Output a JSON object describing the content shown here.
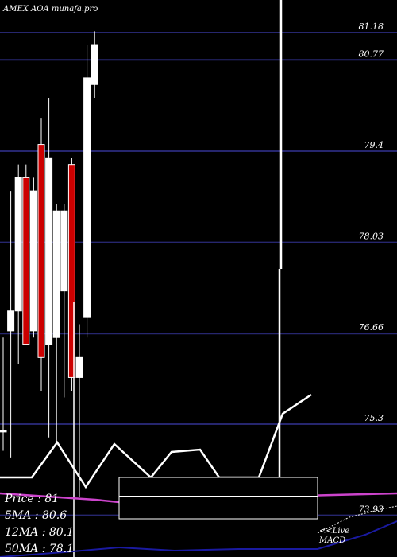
{
  "chart_data": {
    "type": "candlestick",
    "title": "AMEX  AOA munafa.pro",
    "price_ticks": [
      81.18,
      80.77,
      79.4,
      78.03,
      76.66,
      75.3,
      73.93
    ],
    "price_tick_labels": [
      "81.18",
      "80.77",
      "79.4",
      "78.03",
      "76.66",
      "75.3",
      "73.93"
    ],
    "ylim": [
      73.5,
      81.8
    ],
    "grid": true,
    "colors": {
      "background": "#000000",
      "grid": "#26266e",
      "bull": "#ffffff",
      "bear": "#cc0000",
      "candle_outline": "#ffffff",
      "ma_line": "#cc44cc",
      "volume_box": "#000000",
      "macd_line": "#1a1aa0",
      "text": "#ffffff"
    },
    "candles": [
      {
        "open": 75.2,
        "high": 76.6,
        "low": 74.9,
        "close": 75.2
      },
      {
        "open": 76.7,
        "high": 78.8,
        "low": 74.8,
        "close": 77.0
      },
      {
        "open": 77.0,
        "high": 79.2,
        "low": 76.2,
        "close": 79.0
      },
      {
        "open": 79.0,
        "high": 79.2,
        "low": 76.5,
        "close": 76.5
      },
      {
        "open": 76.7,
        "high": 79.0,
        "low": 76.6,
        "close": 78.8
      },
      {
        "open": 79.5,
        "high": 79.9,
        "low": 75.8,
        "close": 76.3
      },
      {
        "open": 76.5,
        "high": 80.2,
        "low": 75.1,
        "close": 79.3
      },
      {
        "open": 76.6,
        "high": 78.6,
        "low": 75.0,
        "close": 78.5
      },
      {
        "open": 77.3,
        "high": 78.6,
        "low": 75.7,
        "close": 78.5
      },
      {
        "open": 79.2,
        "high": 79.3,
        "low": 75.8,
        "close": 76.0
      },
      {
        "open": 76.0,
        "high": 76.8,
        "low": 74.2,
        "close": 76.3
      },
      {
        "open": 76.9,
        "high": 81.0,
        "low": 76.6,
        "close": 80.5
      },
      {
        "open": 80.4,
        "high": 81.2,
        "low": 80.2,
        "close": 81.0
      }
    ],
    "legend": {
      "price": "Price  : 81",
      "ma5": "5MA : 80.6",
      "ma12": "12MA : 80.1",
      "ma50": "50MA : 78.1"
    },
    "macd_label": "<<Live\nMACD"
  }
}
